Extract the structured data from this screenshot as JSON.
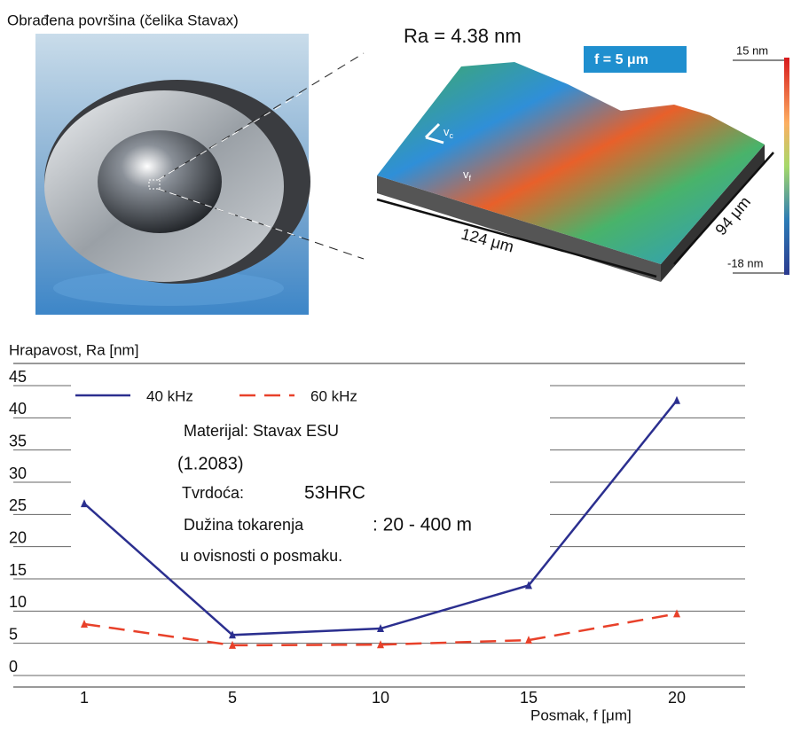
{
  "figure": {
    "photo_caption": "Obrađena površina (čelika Stavax)",
    "ra": "Ra =  4.38 nm",
    "feed": "f = 5 μm",
    "length": "124 μm",
    "width": "94 μm",
    "scale_top": "15 nm",
    "scale_bottom": "-18 nm",
    "vc": "v",
    "vc_sub": "c",
    "vf": "v",
    "vf_sub": "f"
  },
  "chart_data": {
    "type": "line",
    "y_label": "Hrapavost, Ra [nm]",
    "x_label": "Posmak, f [μm]",
    "categories": [
      "1",
      "5",
      "10",
      "15",
      "20"
    ],
    "series": [
      {
        "name": "40 kHz",
        "color": "#2b2f8f",
        "dash": "solid",
        "values": [
          26,
          5.6,
          6.6,
          13.3,
          42
        ]
      },
      {
        "name": "60 kHz",
        "color": "#e8412a",
        "dash": "dashed",
        "values": [
          7.3,
          4,
          4.1,
          4.8,
          8.9
        ]
      }
    ],
    "ylim": [
      0,
      45
    ],
    "yticks": [
      0,
      5,
      10,
      15,
      20,
      25,
      30,
      35,
      40,
      45
    ],
    "grid": true,
    "annotations": [
      "Materijal: Stavax ESU",
      "(1.2083)",
      "Tvrdoća:",
      "53HRC",
      "Dužina tokarenja",
      ": 20 - 400 m",
      "u ovisnosti o posmaku."
    ]
  }
}
